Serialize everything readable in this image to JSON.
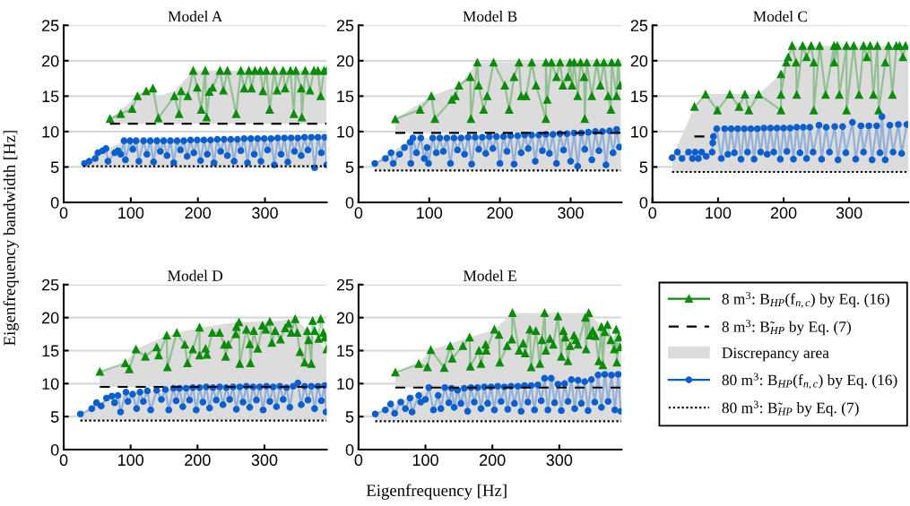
{
  "chart_data": [
    {
      "type": "line",
      "title": "Model A",
      "ylabel": "Eigenfrequency bandwidth [Hz]",
      "xlim": [
        0,
        392
      ],
      "ylim": [
        0,
        25
      ],
      "xticks": [
        0,
        100,
        200,
        300
      ],
      "yticks": [
        0,
        5,
        10,
        15,
        20,
        25
      ],
      "grid": "y",
      "series": [
        {
          "type": "area",
          "color": "#dcdcdc"
        },
        {
          "type": "line",
          "color": "#0a8c0a",
          "marker": "triangle",
          "x": [
            69,
            85,
            102,
            110,
            123,
            133,
            141,
            165,
            172,
            175,
            185,
            193,
            199,
            205,
            211,
            213,
            217,
            222,
            233,
            238,
            244,
            257,
            264,
            269,
            276,
            280,
            285,
            293,
            297,
            302,
            307,
            314,
            318,
            327,
            330,
            338,
            343,
            346,
            354,
            355,
            360,
            367,
            373,
            379,
            383,
            388,
            392
          ],
          "values": [
            11.8,
            12.5,
            13.2,
            15.0,
            15.7,
            16.1,
            11.9,
            15.0,
            12.5,
            15.7,
            15.0,
            18.6,
            16.2,
            13.1,
            18.6,
            12.0,
            15.6,
            16.2,
            18.6,
            15.8,
            18.6,
            12.5,
            18.6,
            16.1,
            18.6,
            16.1,
            18.6,
            18.6,
            15.7,
            18.6,
            13.1,
            18.6,
            15.8,
            18.6,
            16.1,
            18.6,
            12.5,
            18.6,
            16.1,
            12.0,
            18.6,
            15.8,
            18.6,
            18.6,
            15.0,
            18.6,
            18.6
          ]
        },
        {
          "type": "line",
          "color": "#000000",
          "line_style": "dashed",
          "x": [
            69,
            110,
            133,
            141,
            165,
            193,
            392
          ],
          "values": [
            11.1,
            11.1,
            11.1,
            11.1,
            11.1,
            11.1,
            11.1
          ],
          "lower": [
            11.1,
            11.1,
            11.1,
            11.1,
            11.1,
            11.1,
            11.1
          ],
          "upper": [
            11.8,
            15.0,
            16.1,
            15.0,
            15.7,
            18.6,
            18.6
          ]
        },
        {
          "type": "line",
          "color": "#0a5fd0",
          "marker": "circle",
          "x": [
            31,
            38,
            47,
            51,
            58,
            63,
            66,
            76,
            81,
            85,
            90,
            92,
            99,
            103,
            108,
            112,
            119,
            124,
            129,
            134,
            139,
            144,
            149,
            154,
            159,
            164,
            169,
            174,
            179,
            184,
            189,
            194,
            199,
            204,
            209,
            214,
            219,
            224,
            229,
            234,
            239,
            244,
            249,
            254,
            259,
            264,
            269,
            274,
            279,
            284,
            289,
            294,
            299,
            304,
            309,
            314,
            319,
            324,
            329,
            334,
            339,
            344,
            349,
            354,
            359,
            364,
            369,
            374,
            379,
            384,
            389,
            392
          ],
          "values": [
            5.5,
            5.8,
            6.2,
            7.0,
            7.3,
            7.6,
            5.8,
            7.0,
            7.3,
            6.8,
            8.7,
            6.0,
            8.7,
            7.5,
            8.7,
            5.8,
            8.7,
            6.8,
            8.7,
            5.7,
            8.7,
            7.2,
            8.7,
            6.6,
            8.7,
            5.6,
            8.7,
            7.4,
            8.7,
            6.5,
            8.8,
            7.0,
            8.8,
            5.9,
            8.8,
            6.8,
            8.8,
            5.6,
            8.9,
            7.2,
            8.9,
            6.6,
            8.9,
            5.8,
            8.9,
            7.3,
            9.0,
            5.6,
            9.0,
            6.8,
            9.0,
            5.8,
            9.0,
            7.4,
            9.0,
            5.3,
            9.1,
            6.8,
            9.1,
            5.7,
            9.1,
            7.2,
            9.1,
            6.6,
            9.2,
            7.4,
            9.2,
            4.9,
            9.2,
            7.0,
            9.2,
            5.3
          ]
        },
        {
          "type": "line",
          "color": "#000000",
          "line_style": "dotted",
          "x": [
            29,
            31,
            66,
            90,
            392
          ],
          "values": [
            5.1,
            5.1,
            5.1,
            5.1,
            5.1
          ],
          "lower": [
            5.1,
            5.1,
            5.1,
            5.1,
            5.1
          ],
          "upper": [
            5.1,
            5.5,
            7.6,
            8.7,
            9.2
          ]
        }
      ]
    },
    {
      "type": "line",
      "title": "Model B",
      "xlim": [
        0,
        372
      ],
      "ylim": [
        0,
        25
      ],
      "xticks": [
        0,
        100,
        200,
        300
      ],
      "yticks": [
        0,
        5,
        10,
        15,
        20,
        25
      ],
      "grid": "y",
      "series": [
        {
          "type": "area",
          "color": "#dcdcdc"
        },
        {
          "type": "line",
          "color": "#0a8c0a",
          "marker": "triangle",
          "x": [
            52,
            87,
            103,
            108,
            132,
            137,
            142,
            158,
            159,
            168,
            170,
            177,
            182,
            191,
            207,
            213,
            220,
            227,
            230,
            237,
            245,
            251,
            265,
            265,
            267,
            273,
            280,
            285,
            289,
            296,
            299,
            302,
            305,
            310,
            314,
            319,
            320,
            323,
            330,
            337,
            342,
            347,
            353,
            357,
            358,
            365,
            367,
            370
          ],
          "values": [
            11.75,
            13.1,
            15.0,
            11.8,
            14.5,
            15.0,
            16.5,
            17.7,
            11.8,
            19.75,
            16.5,
            13.1,
            15.0,
            19.75,
            16.5,
            13.1,
            17.7,
            19.75,
            15.0,
            15.0,
            19.75,
            16.5,
            11.8,
            19.75,
            14.5,
            19.75,
            17.7,
            19.75,
            16.5,
            17.7,
            19.75,
            16.5,
            19.75,
            15.0,
            19.75,
            17.7,
            11.8,
            19.75,
            15.0,
            19.75,
            16.5,
            19.75,
            15.0,
            13.1,
            19.75,
            15.0,
            19.75,
            16.5
          ]
        },
        {
          "type": "line",
          "color": "#000000",
          "line_style": "dashed",
          "x": [
            52,
            103,
            142,
            168,
            371
          ],
          "values": [
            9.8,
            9.8,
            9.8,
            9.8,
            9.8
          ],
          "lower": [
            9.8,
            9.8,
            9.8,
            9.8,
            9.8
          ],
          "upper": [
            11.8,
            15.0,
            16.5,
            19.8,
            19.8
          ]
        },
        {
          "type": "line",
          "color": "#0a5fd0",
          "marker": "circle",
          "x": [
            23,
            38,
            46,
            49,
            58,
            65,
            73,
            74,
            77,
            82,
            88,
            93,
            97,
            99,
            105,
            110,
            115,
            120,
            125,
            130,
            135,
            140,
            145,
            150,
            155,
            160,
            165,
            170,
            175,
            180,
            185,
            190,
            195,
            200,
            205,
            210,
            215,
            220,
            225,
            230,
            235,
            240,
            245,
            250,
            255,
            260,
            265,
            270,
            275,
            280,
            285,
            290,
            295,
            300,
            305,
            310,
            315,
            320,
            325,
            330,
            335,
            340,
            345,
            350,
            355,
            360,
            365,
            369
          ],
          "values": [
            5.5,
            6.2,
            7.0,
            5.5,
            6.8,
            7.75,
            8.5,
            5.5,
            9.1,
            7.0,
            9.1,
            6.2,
            7.75,
            5.5,
            9.1,
            7.0,
            9.1,
            7.2,
            9.1,
            5.5,
            9.1,
            7.4,
            9.1,
            6.8,
            9.2,
            5.4,
            9.2,
            7.5,
            9.2,
            6.9,
            9.3,
            7.6,
            9.3,
            5.5,
            9.3,
            7.2,
            9.4,
            5.4,
            9.4,
            7.0,
            9.5,
            7.6,
            9.5,
            5.8,
            9.5,
            7.3,
            9.6,
            6.9,
            9.6,
            5.5,
            9.7,
            7.4,
            9.7,
            5.8,
            9.8,
            5.1,
            9.8,
            7.5,
            9.9,
            6.0,
            10.0,
            7.3,
            10.0,
            5.3,
            10.1,
            7.0,
            10.3,
            7.8
          ]
        },
        {
          "type": "line",
          "color": "#000000",
          "line_style": "dotted",
          "x": [
            23,
            77,
            115,
            371
          ],
          "values": [
            4.5,
            4.5,
            4.5,
            4.5
          ],
          "lower": [
            4.5,
            4.5,
            4.5,
            4.5
          ],
          "upper": [
            5.5,
            9.1,
            9.1,
            10.2
          ]
        }
      ]
    },
    {
      "type": "line",
      "title": "Model C",
      "xlim": [
        0,
        390
      ],
      "ylim": [
        0,
        25
      ],
      "xticks": [
        0,
        100,
        200,
        300
      ],
      "yticks": [
        0,
        5,
        10,
        15,
        20,
        25
      ],
      "grid": "y",
      "series": [
        {
          "type": "area",
          "color": "#dcdcdc"
        },
        {
          "type": "line",
          "color": "#0a8c0a",
          "marker": "triangle",
          "x": [
            64,
            81,
            99,
            118,
            132,
            141,
            147,
            162,
            196,
            196,
            196,
            204,
            207,
            213,
            219,
            220,
            229,
            235,
            242,
            246,
            246,
            255,
            264,
            277,
            277,
            282,
            285,
            296,
            296,
            307,
            315,
            322,
            327,
            332,
            337,
            343,
            345,
            355,
            360,
            366,
            372,
            377,
            382,
            386
          ],
          "values": [
            13.5,
            15.25,
            13.0,
            15.25,
            13.5,
            15.25,
            13.0,
            15.25,
            13.0,
            18.1,
            15.2,
            19.75,
            20.5,
            22.1,
            19.75,
            15.2,
            22.1,
            20.5,
            22.1,
            19.75,
            13.0,
            22.1,
            15.2,
            22.1,
            19.75,
            22.1,
            15.2,
            22.1,
            13.0,
            22.1,
            15.2,
            22.1,
            20.5,
            22.1,
            15.2,
            22.1,
            13.0,
            19.75,
            22.1,
            15.2,
            22.1,
            22.1,
            20.5,
            22.1
          ]
        },
        {
          "type": "line",
          "color": "#000000",
          "line_style": "dashed",
          "x": [
            64,
            92
          ],
          "values": [
            9.3,
            9.3
          ]
        },
        {
          "type": "line",
          "color": "#0a5fd0",
          "marker": "circle",
          "x": [
            30,
            38,
            45,
            55,
            61,
            65,
            70,
            75,
            82,
            91,
            92,
            93,
            98,
            105,
            110,
            115,
            120,
            125,
            130,
            135,
            140,
            145,
            150,
            155,
            160,
            165,
            170,
            175,
            180,
            185,
            190,
            195,
            200,
            205,
            210,
            215,
            220,
            225,
            230,
            235,
            240,
            245,
            254,
            258,
            265,
            270,
            278,
            283,
            290,
            295,
            305,
            310,
            318,
            322,
            330,
            335,
            342,
            347,
            350,
            355,
            362,
            367,
            375,
            380,
            388
          ],
          "values": [
            6.3,
            7.1,
            6.2,
            7.1,
            6.2,
            7.1,
            6.2,
            7.1,
            6.5,
            7.1,
            8.4,
            9.3,
            10.4,
            6.2,
            10.4,
            6.8,
            10.4,
            7.0,
            10.4,
            6.1,
            10.4,
            7.1,
            10.4,
            6.1,
            10.4,
            7.1,
            10.5,
            6.8,
            10.5,
            7.1,
            10.5,
            6.1,
            10.5,
            7.2,
            10.5,
            6.1,
            10.6,
            7.0,
            10.6,
            6.2,
            10.6,
            7.1,
            10.9,
            6.1,
            10.6,
            7.1,
            10.7,
            6.0,
            10.7,
            7.0,
            11.3,
            6.1,
            10.8,
            7.1,
            10.8,
            6.0,
            10.8,
            7.0,
            12.1,
            6.0,
            10.9,
            7.1,
            11.0,
            6.9,
            11.0
          ]
        },
        {
          "type": "line",
          "color": "#000000",
          "line_style": "dotted",
          "x": [
            30,
            64,
            81,
            162,
            196,
            213,
            390
          ],
          "values": [
            4.3,
            4.3,
            4.3,
            4.3,
            4.3,
            4.3,
            4.3
          ],
          "lower": [
            4.3,
            4.3,
            4.3,
            4.3,
            4.3,
            4.3,
            4.3
          ],
          "upper": [
            6.3,
            13.5,
            15.3,
            15.3,
            18.1,
            22.1,
            22.1
          ]
        }
      ]
    },
    {
      "type": "line",
      "title": "Model D",
      "xlim": [
        0,
        393
      ],
      "ylim": [
        0,
        25
      ],
      "xticks": [
        0,
        100,
        200,
        300
      ],
      "yticks": [
        0,
        5,
        10,
        15,
        20,
        25
      ],
      "grid": "y",
      "series": [
        {
          "type": "area",
          "color": "#dcdcdc"
        },
        {
          "type": "line",
          "color": "#0a8c0a",
          "marker": "triangle",
          "x": [
            54,
            92,
            98,
            108,
            122,
            139,
            142,
            154,
            155,
            169,
            181,
            185,
            193,
            203,
            203,
            212,
            214,
            222,
            233,
            240,
            242,
            246,
            257,
            258,
            262,
            263,
            273,
            278,
            279,
            284,
            290,
            297,
            302,
            308,
            311,
            316,
            324,
            331,
            336,
            340,
            346,
            349,
            353,
            360,
            364,
            366,
            370,
            372,
            375,
            381,
            384,
            388,
            390,
            393
          ],
          "values": [
            11.8,
            13.1,
            12.2,
            15.2,
            14.1,
            15.5,
            14.3,
            17.3,
            12.5,
            17.7,
            15.9,
            13.1,
            15.2,
            18.5,
            14.3,
            15.3,
            14.4,
            17.7,
            17.7,
            15.9,
            14.1,
            15.9,
            17.5,
            18.6,
            19.3,
            13.0,
            18.2,
            16.0,
            13.1,
            18.0,
            15.3,
            18.8,
            18.2,
            19.4,
            16.2,
            18.0,
            16.7,
            18.4,
            19.1,
            17.7,
            19.8,
            17.7,
            14.8,
            13.2,
            18.0,
            16.6,
            13.0,
            19.5,
            18.0,
            16.8,
            19.8,
            17.7,
            17.0,
            15.2
          ]
        },
        {
          "type": "line",
          "color": "#000000",
          "line_style": "dashed",
          "x": [
            54,
            92,
            108,
            154,
            203,
            258,
            308,
            346,
            393
          ],
          "values": [
            9.5,
            9.5,
            9.5,
            9.5,
            9.5,
            9.5,
            9.5,
            9.5,
            9.5
          ],
          "lower": [
            9.5,
            9.5,
            9.5,
            9.5,
            9.5,
            9.5,
            9.5,
            9.5,
            9.5
          ],
          "upper": [
            11.8,
            13.1,
            15.2,
            17.3,
            18.5,
            19.3,
            19.4,
            19.8,
            15.2
          ]
        },
        {
          "type": "line",
          "color": "#0a5fd0",
          "marker": "circle",
          "x": [
            25,
            42,
            49,
            56,
            64,
            72,
            76,
            81,
            85,
            93,
            96,
            103,
            109,
            114,
            119,
            125,
            130,
            139,
            146,
            152,
            157,
            164,
            168,
            173,
            178,
            183,
            188,
            193,
            198,
            203,
            208,
            213,
            218,
            223,
            228,
            233,
            238,
            243,
            248,
            253,
            258,
            263,
            268,
            273,
            278,
            283,
            288,
            293,
            298,
            303,
            308,
            313,
            318,
            323,
            328,
            333,
            338,
            343,
            350,
            355,
            360,
            365,
            370,
            375,
            380,
            385,
            390,
            392
          ],
          "values": [
            5.4,
            6.2,
            7.1,
            6.6,
            7.8,
            8.1,
            7.1,
            8.2,
            5.7,
            8.7,
            7.3,
            8.4,
            6.2,
            8.7,
            7.3,
            8.9,
            6.0,
            9.0,
            7.6,
            9.1,
            6.0,
            9.3,
            7.4,
            9.3,
            6.5,
            9.3,
            7.5,
            9.4,
            6.0,
            9.4,
            7.2,
            9.5,
            6.3,
            9.4,
            7.5,
            9.5,
            6.8,
            9.4,
            7.6,
            9.5,
            6.1,
            9.5,
            7.2,
            9.6,
            6.4,
            9.5,
            7.5,
            9.5,
            6.0,
            9.6,
            7.3,
            9.5,
            6.5,
            9.6,
            7.6,
            9.4,
            6.4,
            9.6,
            10.1,
            6.8,
            9.6,
            7.5,
            9.6,
            6.2,
            9.6,
            7.4,
            9.7,
            5.7
          ]
        },
        {
          "type": "line",
          "color": "#000000",
          "line_style": "dotted",
          "x": [
            25,
            72,
            114,
            164,
            393
          ],
          "values": [
            4.4,
            4.4,
            4.4,
            4.4,
            4.4
          ],
          "lower": [
            4.4,
            4.4,
            4.4,
            4.4,
            4.4
          ],
          "upper": [
            5.4,
            8.1,
            8.7,
            9.3,
            9.7
          ]
        }
      ]
    },
    {
      "type": "line",
      "title": "Model E",
      "xlabel": "Eigenfrequency [Hz]",
      "legend": "right",
      "xlim": [
        0,
        393
      ],
      "ylim": [
        0,
        25
      ],
      "xticks": [
        0,
        100,
        200,
        300
      ],
      "yticks": [
        0,
        5,
        10,
        15,
        20,
        25
      ],
      "grid": "y",
      "series": [
        {
          "type": "line",
          "name": "8 m$^{3}$: B$_{HP}$(f$_{n,c}$) by Eq. (16)",
          "color": "#0a8c0a",
          "marker": "triangle",
          "x": [
            55,
            90,
            103,
            108,
            128,
            137,
            140,
            156,
            166,
            167,
            180,
            183,
            190,
            191,
            203,
            210,
            211,
            222,
            229,
            230,
            240,
            246,
            249,
            256,
            258,
            265,
            271,
            274,
            278,
            280,
            286,
            291,
            298,
            303,
            306,
            309,
            313,
            316,
            322,
            325,
            328,
            339,
            340,
            344,
            346,
            350,
            354,
            359,
            363,
            365,
            368,
            372,
            377,
            382,
            385,
            386,
            389,
            391
          ],
          "values": [
            11.7,
            13.0,
            12.5,
            15.1,
            12.4,
            15.7,
            13.8,
            15.7,
            17.0,
            12.6,
            15.0,
            13.0,
            15.9,
            15.0,
            18.2,
            17.4,
            13.2,
            15.7,
            16.7,
            20.7,
            15.0,
            16.1,
            14.6,
            18.2,
            12.5,
            18.0,
            13.0,
            16.6,
            20.7,
            15.0,
            16.8,
            15.9,
            20.2,
            14.1,
            18.0,
            17.0,
            13.4,
            15.7,
            17.3,
            16.6,
            15.9,
            20.0,
            15.2,
            20.7,
            17.3,
            18.0,
            17.2,
            13.4,
            18.6,
            12.8,
            17.8,
            18.9,
            16.6,
            15.2,
            18.2,
            13.2,
            17.0,
            15.5
          ]
        },
        {
          "type": "line",
          "name": "8 m$^{3}$: B̃$_{HP}$ by Eq. (7)",
          "color": "#000000",
          "line_style": "dashed",
          "x": [
            55,
            90,
            108,
            166,
            203,
            230,
            278,
            344,
            393
          ],
          "values": [
            9.4,
            9.4,
            9.4,
            9.4,
            9.4,
            9.4,
            9.4,
            9.4,
            9.4
          ],
          "lower": [
            9.4,
            9.4,
            9.4,
            9.4,
            9.4,
            9.4,
            9.4,
            9.4,
            9.4
          ],
          "upper": [
            11.7,
            13.0,
            15.1,
            17.0,
            18.2,
            20.7,
            20.7,
            20.7,
            15.5
          ]
        },
        {
          "type": "area",
          "name": "Discrepancy area",
          "color": "#dcdcdc"
        },
        {
          "type": "line",
          "name": "80 m$^{3}$: B$_{HP}$(f$_{n,c}$) by Eq. (16)",
          "color": "#0a5fd0",
          "marker": "circle",
          "x": [
            25,
            40,
            48,
            54,
            63,
            70,
            77,
            80,
            90,
            93,
            100,
            105,
            112,
            119,
            123,
            129,
            135,
            139,
            143,
            148,
            153,
            158,
            163,
            168,
            173,
            178,
            183,
            188,
            193,
            198,
            203,
            208,
            213,
            218,
            223,
            228,
            233,
            238,
            243,
            248,
            253,
            258,
            263,
            268,
            273,
            278,
            283,
            288,
            293,
            298,
            303,
            308,
            313,
            318,
            323,
            328,
            333,
            338,
            343,
            348,
            353,
            358,
            363,
            368,
            373,
            378,
            383,
            388,
            392
          ],
          "values": [
            5.4,
            6.0,
            6.9,
            5.5,
            7.2,
            6.2,
            7.8,
            5.7,
            8.2,
            7.2,
            7.6,
            9.4,
            6.0,
            8.2,
            6.2,
            9.4,
            7.1,
            9.3,
            6.4,
            9.0,
            7.0,
            9.3,
            5.8,
            9.4,
            7.2,
            9.4,
            6.2,
            9.5,
            7.0,
            9.5,
            6.0,
            9.6,
            7.3,
            9.5,
            6.1,
            9.6,
            7.0,
            9.6,
            5.8,
            9.7,
            7.2,
            9.7,
            6.0,
            9.8,
            7.4,
            10.8,
            6.0,
            10.8,
            7.1,
            9.9,
            5.9,
            10.0,
            7.3,
            10.6,
            6.2,
            10.5,
            7.0,
            10.3,
            5.9,
            10.6,
            7.2,
            11.3,
            6.4,
            11.4,
            7.3,
            11.3,
            6.0,
            11.4,
            5.8
          ]
        },
        {
          "type": "line",
          "name": "80 m$^{3}$: B̃$_{HP}$ by Eq. (7)",
          "color": "#000000",
          "line_style": "dotted",
          "x": [
            25,
            105,
            278,
            358,
            393
          ],
          "values": [
            4.3,
            4.3,
            4.3,
            4.3,
            4.3
          ],
          "lower": [
            4.3,
            4.3,
            4.3,
            4.3,
            4.3
          ],
          "upper": [
            5.4,
            9.4,
            10.8,
            11.3,
            11.4
          ]
        }
      ]
    }
  ]
}
